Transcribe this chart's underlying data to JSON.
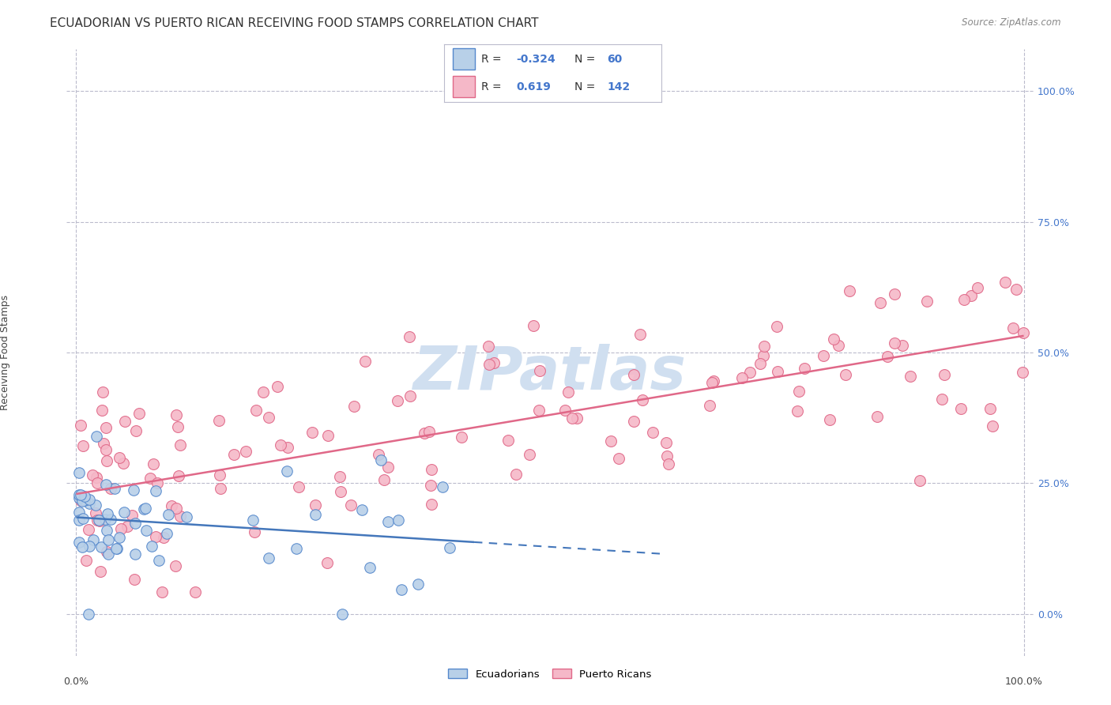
{
  "title": "ECUADORIAN VS PUERTO RICAN RECEIVING FOOD STAMPS CORRELATION CHART",
  "source": "Source: ZipAtlas.com",
  "ylabel": "Receiving Food Stamps",
  "ytick_labels": [
    "0.0%",
    "25.0%",
    "50.0%",
    "75.0%",
    "100.0%"
  ],
  "ytick_values": [
    0,
    25,
    50,
    75,
    100
  ],
  "legend_label1": "Ecuadorians",
  "legend_label2": "Puerto Ricans",
  "color_blue_fill": "#b8d0e8",
  "color_pink_fill": "#f5b8c8",
  "color_blue_edge": "#5588cc",
  "color_pink_edge": "#e06888",
  "color_blue_line": "#4477bb",
  "color_pink_line": "#e06888",
  "color_blue_text": "#4477cc",
  "background_color": "#ffffff",
  "grid_color": "#bbbbcc",
  "watermark_color": "#d0dff0",
  "title_fontsize": 11,
  "axis_fontsize": 9,
  "tick_fontsize": 9,
  "xlim": [
    -1,
    101
  ],
  "ylim": [
    -8,
    108
  ]
}
